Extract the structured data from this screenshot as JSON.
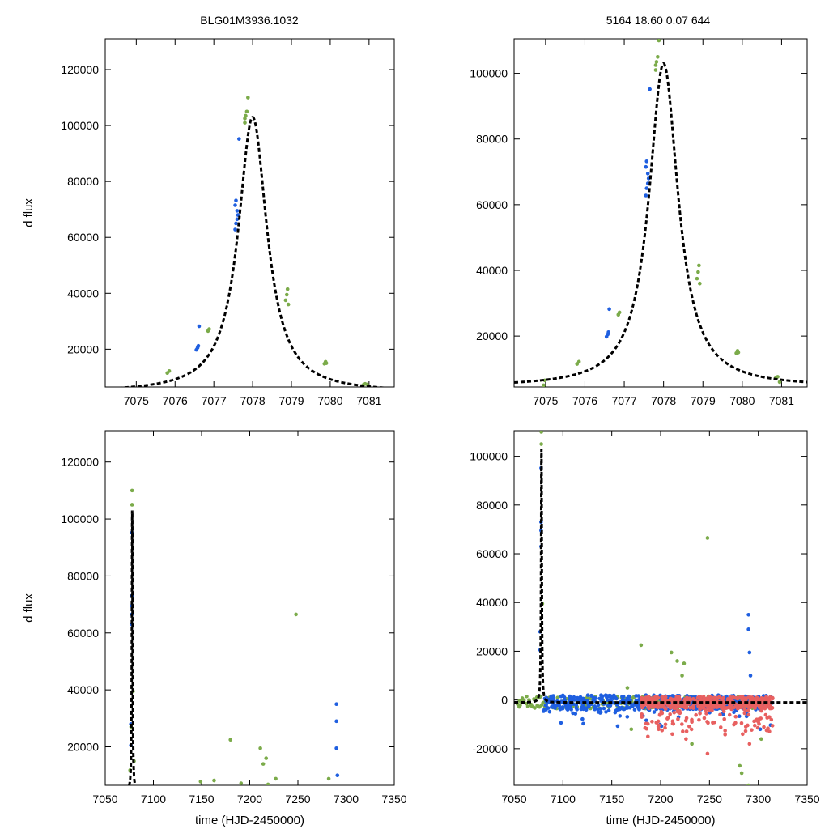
{
  "figure": {
    "title_left": "BLG01M3936.1032",
    "title_right": "5164   18.60   0.07   644"
  },
  "colors": {
    "blue": "#1f5fe0",
    "green": "#7bab4a",
    "red": "#e86060",
    "model": "#000000",
    "axes": "#000000"
  },
  "chart_data": [
    {
      "type": "scatter",
      "panel": "top-left",
      "title": "BLG01M3936.1032",
      "xlabel": "",
      "ylabel": "d flux",
      "xlim": [
        7074.2,
        7081.65
      ],
      "ylim": [
        6500,
        131000
      ],
      "x_ticks": [
        7075,
        7076,
        7077,
        7078,
        7079,
        7080,
        7081
      ],
      "y_ticks": [
        20000,
        40000,
        60000,
        80000,
        100000,
        120000
      ],
      "model": {
        "t0": 7078.0,
        "peak": 103000,
        "tau": 0.45,
        "base": 4500,
        "style": "dashed"
      },
      "series": [
        {
          "name": "blue",
          "color_key": "blue",
          "points": [
            [
              7076.55,
              19800
            ],
            [
              7076.58,
              20500
            ],
            [
              7076.6,
              21200
            ],
            [
              7076.62,
              28200
            ],
            [
              7077.55,
              62800
            ],
            [
              7077.57,
              65000
            ],
            [
              7077.6,
              66500
            ],
            [
              7077.62,
              68000
            ],
            [
              7077.55,
              71500
            ],
            [
              7077.57,
              73200
            ],
            [
              7077.6,
              69500
            ],
            [
              7077.65,
              95200
            ]
          ]
        },
        {
          "name": "green",
          "color_key": "green",
          "points": [
            [
              7075.8,
              11500
            ],
            [
              7075.85,
              12200
            ],
            [
              7076.85,
              26500
            ],
            [
              7076.88,
              27200
            ],
            [
              7077.8,
              101000
            ],
            [
              7077.82,
              103500
            ],
            [
              7077.85,
              105000
            ],
            [
              7077.88,
              110000
            ],
            [
              7077.8,
              102500
            ],
            [
              7078.85,
              37500
            ],
            [
              7078.88,
              39500
            ],
            [
              7078.9,
              41500
            ],
            [
              7078.92,
              36000
            ],
            [
              7079.85,
              14800
            ],
            [
              7079.88,
              15500
            ],
            [
              7079.9,
              15000
            ],
            [
              7080.85,
              7200
            ],
            [
              7080.9,
              7600
            ],
            [
              7080.95,
              7400
            ]
          ]
        }
      ]
    },
    {
      "type": "scatter",
      "panel": "top-right",
      "title": "5164   18.60   0.07   644",
      "xlabel": "",
      "ylabel": "",
      "xlim": [
        7074.2,
        7081.65
      ],
      "ylim": [
        4500,
        110500
      ],
      "x_ticks": [
        7075,
        7076,
        7077,
        7078,
        7079,
        7080,
        7081
      ],
      "y_ticks": [
        20000,
        40000,
        60000,
        80000,
        100000
      ],
      "model": {
        "t0": 7078.0,
        "peak": 103000,
        "tau": 0.45,
        "base": 4500,
        "style": "dashed"
      },
      "series": [
        {
          "name": "blue",
          "color_key": "blue",
          "points": [
            [
              7076.55,
              19800
            ],
            [
              7076.58,
              20500
            ],
            [
              7076.6,
              21200
            ],
            [
              7076.62,
              28200
            ],
            [
              7077.55,
              62800
            ],
            [
              7077.57,
              65000
            ],
            [
              7077.6,
              66500
            ],
            [
              7077.62,
              68000
            ],
            [
              7077.55,
              71500
            ],
            [
              7077.57,
              73200
            ],
            [
              7077.6,
              69500
            ],
            [
              7077.65,
              95200
            ]
          ]
        },
        {
          "name": "green",
          "color_key": "green",
          "points": [
            [
              7074.95,
              5000
            ],
            [
              7074.98,
              6500
            ],
            [
              7075.8,
              11500
            ],
            [
              7075.85,
              12200
            ],
            [
              7076.85,
              26500
            ],
            [
              7076.88,
              27200
            ],
            [
              7077.8,
              101000
            ],
            [
              7077.82,
              103500
            ],
            [
              7077.85,
              105000
            ],
            [
              7077.88,
              110000
            ],
            [
              7077.8,
              102500
            ],
            [
              7078.85,
              37500
            ],
            [
              7078.88,
              39500
            ],
            [
              7078.9,
              41500
            ],
            [
              7078.92,
              36000
            ],
            [
              7079.85,
              14800
            ],
            [
              7079.88,
              15500
            ],
            [
              7079.9,
              15000
            ],
            [
              7080.85,
              7200
            ],
            [
              7080.9,
              7600
            ],
            [
              7080.95,
              6000
            ]
          ]
        }
      ]
    },
    {
      "type": "scatter",
      "panel": "bottom-left",
      "title": "",
      "xlabel": "time (HJD-2450000)",
      "ylabel": "d flux",
      "xlim": [
        7050,
        7350
      ],
      "ylim": [
        6500,
        131000
      ],
      "x_ticks": [
        7050,
        7100,
        7150,
        7200,
        7250,
        7300,
        7350
      ],
      "y_ticks": [
        20000,
        40000,
        60000,
        80000,
        100000,
        120000
      ],
      "model": {
        "t0": 7078.0,
        "peak": 103000,
        "tau": 0.45,
        "base": 4500,
        "style": "dashed"
      },
      "series": [
        {
          "name": "blue",
          "color_key": "blue",
          "points": [
            [
              7076.6,
              20500
            ],
            [
              7076.6,
              28000
            ],
            [
              7077.6,
              63000
            ],
            [
              7077.6,
              66500
            ],
            [
              7077.6,
              69500
            ],
            [
              7077.6,
              73000
            ],
            [
              7077.65,
              95200
            ],
            [
              7290,
              35000
            ],
            [
              7290,
              29000
            ],
            [
              7290,
              19500
            ],
            [
              7291,
              10000
            ]
          ]
        },
        {
          "name": "green",
          "color_key": "green",
          "points": [
            [
              7075.8,
              11800
            ],
            [
              7076.85,
              27000
            ],
            [
              7077.85,
              105000
            ],
            [
              7077.88,
              110000
            ],
            [
              7078.9,
              39500
            ],
            [
              7079.85,
              15000
            ],
            [
              7149,
              7800
            ],
            [
              7163,
              8200
            ],
            [
              7180,
              22500
            ],
            [
              7191,
              7200
            ],
            [
              7211,
              19500
            ],
            [
              7214,
              14000
            ],
            [
              7217,
              16000
            ],
            [
              7219,
              6800
            ],
            [
              7227,
              8800
            ],
            [
              7248,
              66500
            ],
            [
              7282,
              8800
            ]
          ]
        }
      ]
    },
    {
      "type": "scatter",
      "panel": "bottom-right",
      "title": "",
      "xlabel": "time (HJD-2450000)",
      "ylabel": "",
      "xlim": [
        7050,
        7350
      ],
      "ylim": [
        -35000,
        110500
      ],
      "x_ticks": [
        7050,
        7100,
        7150,
        7200,
        7250,
        7300,
        7350
      ],
      "y_ticks": [
        -20000,
        0,
        20000,
        40000,
        60000,
        80000,
        100000
      ],
      "model": {
        "t0": 7078.0,
        "peak": 103000,
        "tau": 0.45,
        "base": -1000,
        "style": "dashed"
      },
      "baseline_noise": {
        "blue_range": [
          7080,
          7315
        ],
        "green_range": [
          7052,
          7300
        ],
        "red_range": [
          7180,
          7315
        ]
      },
      "series": [
        {
          "name": "blue",
          "color_key": "blue",
          "points": [
            [
              7076.6,
              20500
            ],
            [
              7076.6,
              28000
            ],
            [
              7077.6,
              63000
            ],
            [
              7077.6,
              69500
            ],
            [
              7077.6,
              73000
            ],
            [
              7077.65,
              95200
            ],
            [
              7290,
              35000
            ],
            [
              7290,
              29000
            ],
            [
              7291,
              19500
            ],
            [
              7292,
              10000
            ],
            [
              7275,
              -5000
            ],
            [
              7302,
              -12000
            ]
          ]
        },
        {
          "name": "green",
          "color_key": "green",
          "points": [
            [
              7077.85,
              105000
            ],
            [
              7077.88,
              110000
            ],
            [
              7078.9,
              39500
            ],
            [
              7180,
              22500
            ],
            [
              7211,
              19500
            ],
            [
              7217,
              16000
            ],
            [
              7222,
              10000
            ],
            [
              7224,
              15000
            ],
            [
              7248,
              66500
            ],
            [
              7232,
              -18000
            ],
            [
              7170,
              -12000
            ],
            [
              7281,
              -27000
            ],
            [
              7283,
              -30000
            ],
            [
              7290,
              -35000
            ],
            [
              7303,
              -16000
            ],
            [
              7166,
              5000
            ]
          ]
        },
        {
          "name": "red",
          "color_key": "red",
          "points": [
            [
              7187,
              -15000
            ],
            [
              7198,
              -12000
            ],
            [
              7205,
              -10000
            ],
            [
              7212,
              -14000
            ],
            [
              7226,
              -16000
            ],
            [
              7232,
              -9000
            ],
            [
              7248,
              -22000
            ],
            [
              7284,
              -14000
            ],
            [
              7291,
              -18000
            ],
            [
              7300,
              -9000
            ]
          ]
        }
      ]
    }
  ]
}
